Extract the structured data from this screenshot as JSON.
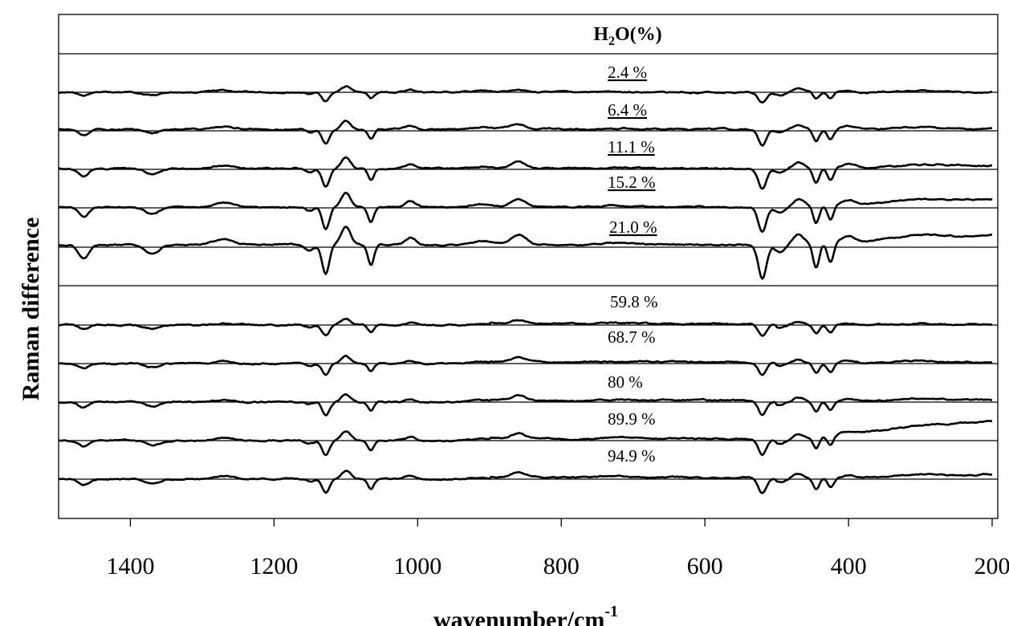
{
  "chart_data": {
    "type": "line",
    "title_parts": {
      "h": "H",
      "sub": "2",
      "rest": "O(%)"
    },
    "xlabel": "wavenumber/cm",
    "xlabel_sup": "-1",
    "ylabel": "Raman difference",
    "xlim": [
      1500,
      200
    ],
    "x_ticks": [
      1400,
      1200,
      1000,
      800,
      600,
      400,
      200
    ],
    "x_tick_labels": [
      "1400",
      "1200",
      "1000",
      "800",
      "600",
      "400",
      "200"
    ],
    "y_ticks_shown": false,
    "grid": "horizontal baselines per trace",
    "series": [
      {
        "name": "2.4 %",
        "underline": true
      },
      {
        "name": "6.4 %",
        "underline": true
      },
      {
        "name": "11.1 %",
        "underline": true
      },
      {
        "name": "15.2 %",
        "underline": true
      },
      {
        "name": "21.0 %",
        "underline": true
      },
      {
        "name": "59.8 %",
        "underline": false
      },
      {
        "name": "68.7 %",
        "underline": false
      },
      {
        "name": "80 %",
        "underline": false
      },
      {
        "name": "89.9 %",
        "underline": false
      },
      {
        "name": "94.9 %",
        "underline": false
      }
    ],
    "colors": {
      "line": "#000000",
      "background": "#ffffff"
    }
  }
}
